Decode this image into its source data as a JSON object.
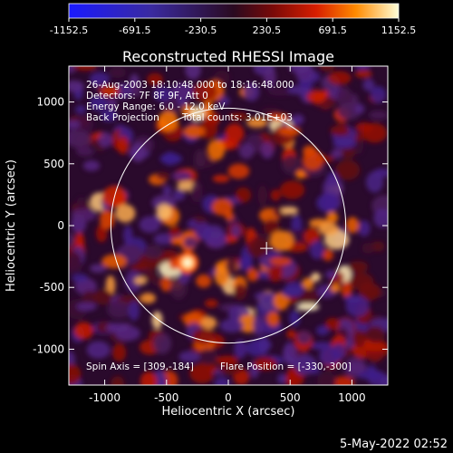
{
  "chart_data": {
    "type": "heatmap",
    "title": "Reconstructed RHESSI Image",
    "xlabel": "Heliocentric X (arcsec)",
    "ylabel": "Heliocentric Y (arcsec)",
    "xlim": [
      -1290,
      1290
    ],
    "ylim": [
      -1290,
      1290
    ],
    "xticks": [
      -1000,
      -500,
      0,
      500,
      1000
    ],
    "yticks": [
      -1000,
      -500,
      0,
      500,
      1000
    ],
    "colorbar": {
      "ticks": [
        -1152.5,
        -691.5,
        -230.5,
        230.5,
        691.5,
        1152.5
      ],
      "tick_labels": [
        "-1152.5",
        "-691.5",
        "-230.5",
        "230.5",
        "691.5",
        "1152.5"
      ],
      "range": [
        -1152.5,
        1152.5
      ]
    },
    "annotations": [
      "26-Aug-2003 18:10:48.000 to 18:16:48.000",
      "Detectors: 7F 8F 9F, Att 0",
      "Energy Range: 6.0 - 12.0 keV",
      "Back Projection",
      "Total counts: 3.01E+03",
      "Spin Axis = [309,-184]",
      "Flare Position = [-330,-300]"
    ],
    "solar_limb_radius_arcsec": 950,
    "spin_axis": [
      309,
      -184
    ],
    "flare_position": [
      -330,
      -300
    ],
    "grid": false
  },
  "timestamp": "5-May-2022 02:52"
}
